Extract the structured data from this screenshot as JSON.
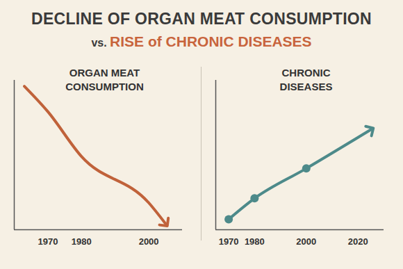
{
  "title": "DECLINE OF ORGAN MEAT CONSUMPTION",
  "subtitle": "vs. RISE of CHRONIC DISEASES",
  "chart_data": [
    {
      "type": "line",
      "title": "ORGAN MEAT CONSUMPTION",
      "x": [
        1963,
        1970,
        1980,
        2000,
        2005
      ],
      "values": [
        96,
        79,
        49,
        18,
        4
      ],
      "color": "#c0623a",
      "marker": "none",
      "line_style": "solid",
      "xlim": [
        1960,
        2010
      ],
      "xticks": [
        1970,
        1980,
        2000
      ],
      "ylim": [
        0,
        100
      ],
      "yticks": [],
      "tick_labels": "x"
    },
    {
      "type": "line",
      "title": "CHRONIC DISEASES",
      "x": [
        1970,
        1980,
        2000,
        2025
      ],
      "values": [
        7,
        21,
        41,
        67
      ],
      "color": "#4d8a8a",
      "marker": "circle",
      "line_style": "solid",
      "xlim": [
        1965,
        2030
      ],
      "xticks": [
        1970,
        1980,
        2000,
        2020
      ],
      "ylim": [
        0,
        100
      ],
      "yticks": [],
      "tick_labels": "x"
    }
  ]
}
